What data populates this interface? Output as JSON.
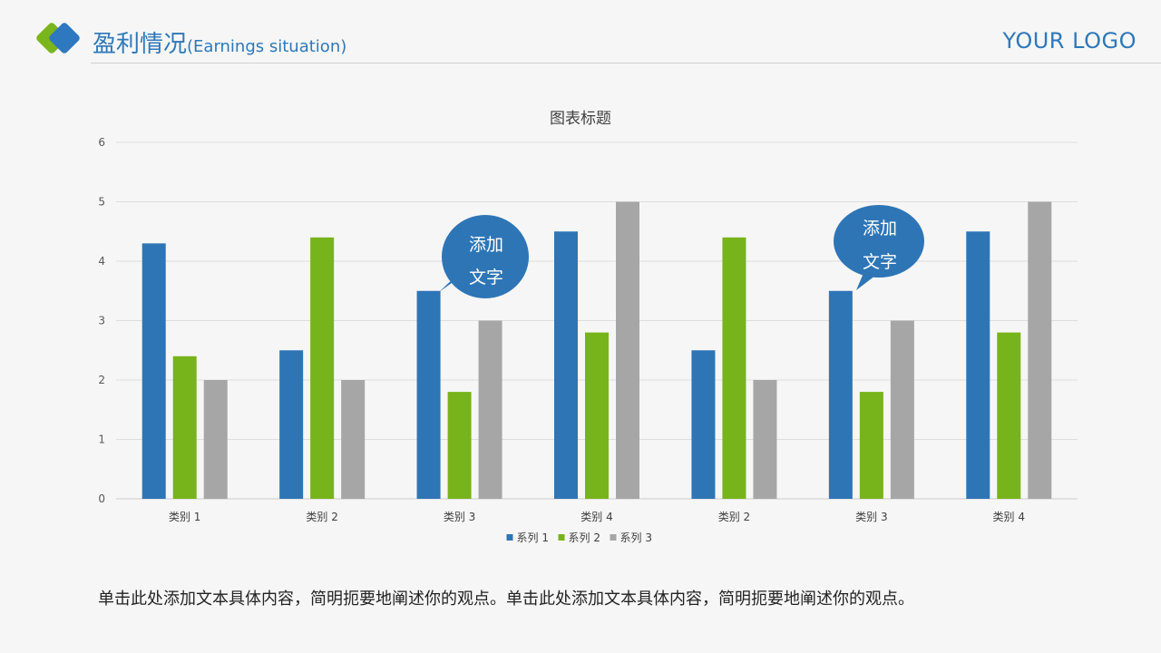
{
  "header": {
    "title": "盈利情况",
    "subtitle": "(Earnings situation)",
    "brand": "YOUR LOGO"
  },
  "callouts": [
    {
      "line1": "添加",
      "line2": "文字"
    },
    {
      "line1": "添加",
      "line2": "文字"
    }
  ],
  "caption": "单击此处添加文本具体内容，简明扼要地阐述你的观点。单击此处添加文本具体内容，简明扼要地阐述你的观点。",
  "colors": {
    "accent": "#2e78b8",
    "series1": "#2e75b6",
    "series2": "#77b31a",
    "series3": "#a6a6a6",
    "callout": "#2e75b6",
    "logo_green": "#7ab51d",
    "logo_blue": "#2e78c0"
  },
  "chart_data": {
    "type": "bar",
    "title": "图表标题",
    "categories": [
      "类别 1",
      "类别 2",
      "类别 3",
      "类别 4",
      "类别 2",
      "类别 3",
      "类别 4"
    ],
    "series": [
      {
        "name": "系列 1",
        "values": [
          4.3,
          2.5,
          3.5,
          4.5,
          2.5,
          3.5,
          4.5
        ]
      },
      {
        "name": "系列 2",
        "values": [
          2.4,
          4.4,
          1.8,
          2.8,
          4.4,
          1.8,
          2.8
        ]
      },
      {
        "name": "系列 3",
        "values": [
          2,
          2,
          3,
          5,
          2,
          3,
          5
        ]
      }
    ],
    "xlabel": "",
    "ylabel": "",
    "ylim": [
      0,
      6
    ],
    "yticks": [
      0,
      1,
      2,
      3,
      4,
      5,
      6
    ],
    "grid": true,
    "legend": "bottom-center"
  }
}
